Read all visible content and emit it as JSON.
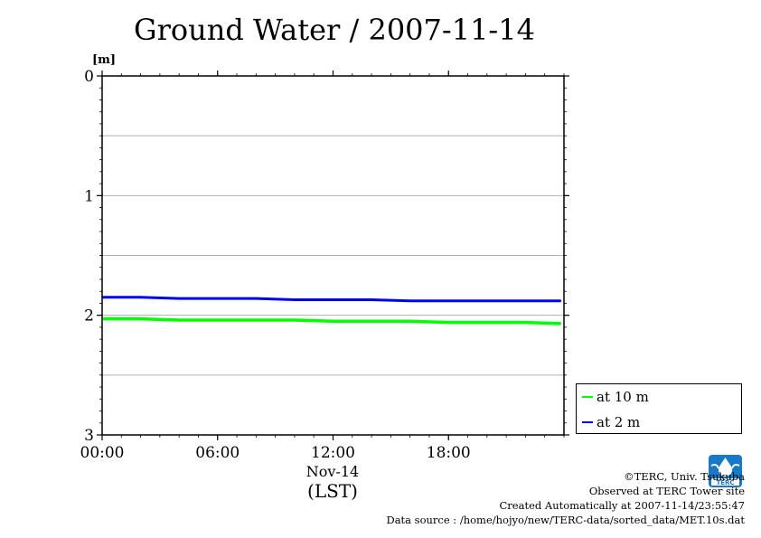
{
  "chart_data": {
    "type": "line",
    "title": "Ground Water / 2007-11-14",
    "ylabel": "[m]",
    "xlabel": "(LST)",
    "x_date_label": "Nov-14",
    "y_inverted": true,
    "ylim": [
      0,
      3
    ],
    "xlim": [
      "00:00",
      "24:00"
    ],
    "y_ticks": [
      "0",
      "1",
      "2",
      "3"
    ],
    "x_ticks": [
      "00:00",
      "06:00",
      "12:00",
      "18:00"
    ],
    "grid": true,
    "legend_position": "bottom-right-outside",
    "x": [
      "00:00",
      "02:00",
      "04:00",
      "06:00",
      "08:00",
      "10:00",
      "12:00",
      "14:00",
      "16:00",
      "18:00",
      "20:00",
      "22:00",
      "23:50"
    ],
    "series": [
      {
        "name": "at 10 m",
        "color": "#00ff00",
        "values": [
          2.03,
          2.03,
          2.04,
          2.04,
          2.04,
          2.04,
          2.05,
          2.05,
          2.05,
          2.06,
          2.06,
          2.06,
          2.07
        ]
      },
      {
        "name": "at 2 m",
        "color": "#0000ff",
        "values": [
          1.85,
          1.85,
          1.86,
          1.86,
          1.86,
          1.87,
          1.87,
          1.87,
          1.88,
          1.88,
          1.88,
          1.88,
          1.88
        ]
      }
    ]
  },
  "footer": {
    "copyright": "©TERC, Univ. Tsukuba",
    "observed": "Observed at TERC Tower site",
    "created": "Created Automatically at 2007-11-14/23:55:47",
    "source": "Data source : /home/hojyo/new/TERC-data/sorted_data/MET.10s.dat"
  },
  "logo": {
    "text": "TERC",
    "color": "#1a78c8"
  }
}
